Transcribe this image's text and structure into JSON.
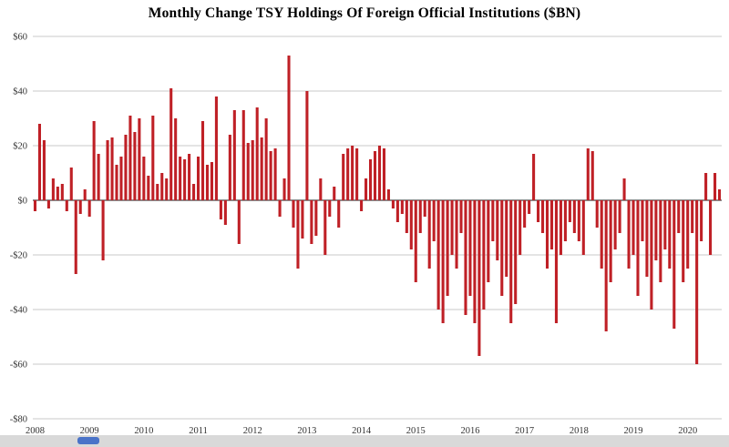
{
  "chart_data": {
    "type": "bar",
    "title": "Monthly Change TSY Holdings Of Foreign Official Institutions ($BN)",
    "xlabel": "",
    "ylabel": "",
    "start": "2008-01",
    "frequency": "monthly",
    "x_tick_labels": [
      "2008",
      "2009",
      "2010",
      "2011",
      "2012",
      "2013",
      "2014",
      "2015",
      "2016",
      "2017",
      "2018",
      "2019",
      "2020"
    ],
    "y_ticks": [
      {
        "value": 60,
        "label": "$60"
      },
      {
        "value": 40,
        "label": "$40"
      },
      {
        "value": 20,
        "label": "$20"
      },
      {
        "value": 0,
        "label": "$0"
      },
      {
        "value": -20,
        "label": "-$20"
      },
      {
        "value": -40,
        "label": "-$40"
      },
      {
        "value": -60,
        "label": "-$60"
      },
      {
        "value": -80,
        "label": "-$80"
      }
    ],
    "ylim": [
      -80,
      60
    ],
    "grid": "horizontal",
    "legend": "none",
    "bar_color": "#bf2026",
    "grid_color": "#c9c9c9",
    "zero_line_color": "#1a1a1a",
    "tick_label_color": "#333333",
    "values": [
      -4,
      28,
      22,
      -3,
      8,
      5,
      6,
      -4,
      12,
      -27,
      -5,
      4,
      -6,
      29,
      17,
      -22,
      22,
      23,
      13,
      16,
      24,
      31,
      25,
      30,
      16,
      9,
      31,
      6,
      10,
      8,
      41,
      30,
      16,
      15,
      17,
      6,
      16,
      29,
      13,
      14,
      38,
      -7,
      -9,
      24,
      33,
      -16,
      33,
      21,
      22,
      34,
      23,
      30,
      18,
      19,
      -6,
      8,
      53,
      -10,
      -25,
      -14,
      40,
      -16,
      -13,
      8,
      -20,
      -6,
      5,
      -10,
      17,
      19,
      20,
      19,
      -4,
      8,
      15,
      18,
      20,
      19,
      4,
      -3,
      -8,
      -5,
      -12,
      -18,
      -30,
      -12,
      -6,
      -25,
      -15,
      -40,
      -45,
      -35,
      -20,
      -25,
      -12,
      -42,
      -35,
      -45,
      -57,
      -40,
      -30,
      -15,
      -22,
      -35,
      -28,
      -45,
      -38,
      -20,
      -10,
      -5,
      17,
      -8,
      -12,
      -25,
      -18,
      -45,
      -20,
      -15,
      -8,
      -12,
      -15,
      -20,
      19,
      18,
      -10,
      -25,
      -48,
      -30,
      -18,
      -12,
      8,
      -25,
      -20,
      -35,
      -15,
      -28,
      -40,
      -22,
      -30,
      -18,
      -25,
      -47,
      -12,
      -30,
      -25,
      -12,
      -60,
      -15,
      10,
      -20,
      10,
      4
    ]
  },
  "footer": {
    "bar_color": "#d9d9d9",
    "logo_color": "#4a73c8"
  }
}
